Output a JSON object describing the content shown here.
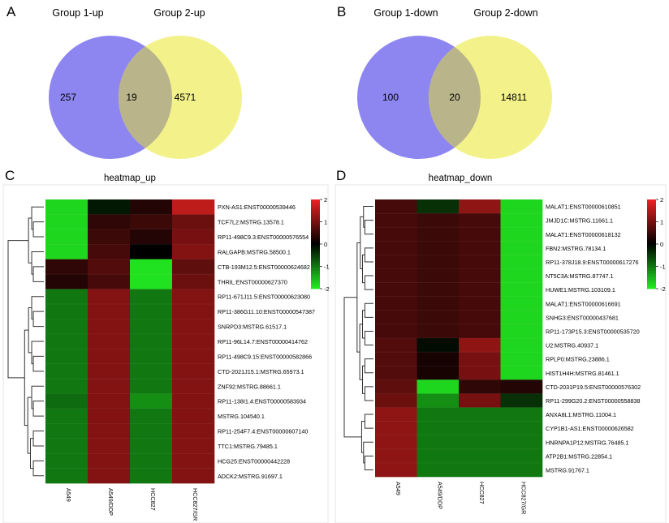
{
  "venn_up": {
    "panel_label": "A",
    "left_label": "Group 1-up",
    "right_label": "Group 2-up",
    "left_only": "257",
    "overlap": "19",
    "right_only": "4571",
    "left_color": "#8e86f0",
    "right_color": "#f3f28a",
    "overlap_color": "#b9b48a"
  },
  "venn_down": {
    "panel_label": "B",
    "left_label": "Group 1-down",
    "right_label": "Group 2-down",
    "left_only": "100",
    "overlap": "20",
    "right_only": "14811",
    "left_color": "#8e86f0",
    "right_color": "#f3f28a",
    "overlap_color": "#b9b48a"
  },
  "chart_data": [
    {
      "type": "heatmap",
      "panel_label": "C",
      "title": "heatmap_up",
      "columns": [
        "A549",
        "A549/DDP",
        "HCC827",
        "HCC827/GR"
      ],
      "rows": [
        "PXN-AS1:ENST00000539446",
        "TCF7L2:MSTRG.13578.1",
        "RP11-498C9.3:ENST00000576554",
        "RALGAPB:MSTRG.58500.1",
        "CTB-193M12.5:ENST00000624682",
        "THRIL:ENST00000627370",
        "RP11-671J11.5:ENST00000623080",
        "RP11-386G11.10:ENST00000547387",
        "SNRPD3:MSTRG.61517.1",
        "RP11-96L14.7:ENST00000414762",
        "RP11-498C9.15:ENST00000582866",
        "CTD-2021J15.1:MSTRG.65973.1",
        "ZNF92:MSTRG.88661.1",
        "RP11-138I1.4:ENST00000583934",
        "MSTRG.104540.1",
        "RP11-254F7.4:ENST00000607140",
        "TTC1:MSTRG.79485.1",
        "HCG25:ENST00000442228",
        "ADCK2:MSTRG.91697.1"
      ],
      "values": [
        [
          -1.8,
          -0.2,
          0.3,
          1.6
        ],
        [
          -1.8,
          0.4,
          0.5,
          0.9
        ],
        [
          -1.8,
          0.5,
          0.3,
          1.0
        ],
        [
          -1.8,
          0.6,
          0.0,
          1.1
        ],
        [
          0.4,
          0.7,
          -1.9,
          0.8
        ],
        [
          0.3,
          0.6,
          -1.9,
          0.9
        ],
        [
          -1.0,
          1.1,
          -1.0,
          1.1
        ],
        [
          -1.0,
          1.1,
          -1.0,
          1.1
        ],
        [
          -1.0,
          1.1,
          -1.0,
          1.1
        ],
        [
          -1.0,
          1.1,
          -1.0,
          1.1
        ],
        [
          -1.0,
          1.1,
          -1.0,
          1.1
        ],
        [
          -1.0,
          1.1,
          -1.0,
          1.1
        ],
        [
          -1.0,
          1.1,
          -1.0,
          1.1
        ],
        [
          -0.9,
          1.1,
          -1.2,
          1.1
        ],
        [
          -1.0,
          1.1,
          -1.0,
          1.1
        ],
        [
          -1.0,
          1.1,
          -1.0,
          1.1
        ],
        [
          -1.0,
          1.1,
          -1.0,
          1.1
        ],
        [
          -1.0,
          1.1,
          -1.0,
          1.1
        ],
        [
          -1.0,
          1.1,
          -1.0,
          1.1
        ]
      ],
      "scale": {
        "min": -2,
        "max": 2,
        "ticks": [
          "2",
          "1",
          "0",
          "-1",
          "-2"
        ]
      },
      "colors": {
        "low": "#22ee22",
        "mid": "#000000",
        "high": "#ee2222"
      }
    },
    {
      "type": "heatmap",
      "panel_label": "D",
      "title": "heatmap_down",
      "columns": [
        "A549",
        "A549/DDP",
        "HCC827",
        "HCC827/GR"
      ],
      "rows": [
        "MALAT1:ENST00000610851",
        "JMJD1C:MSTRG.11661.1",
        "MALAT1:ENST00000618132",
        "FBN2:MSTRG.78134.1",
        "RP11-378J18.9:ENST00000617276",
        "NT5C3A:MSTRG.87747.1",
        "HUWE1:MSTRG.103109.1",
        "MALAT1:ENST00000616691",
        "SNHG3:ENST00000437681",
        "RP11-173P15.3:ENST00000535720",
        "U2:MSTRG.40937.1",
        "RPLP0:MSTRG.23886.1",
        "HIST1H4H:MSTRG.81461.1",
        "CTD-2031P19.5:ENST00000576302",
        "RP11-299G20.2:ENST00000558838",
        "ANXA8L1:MSTRG.11004.1",
        "CYP1B1-AS1:ENST00000626582",
        "HNRNPA1P12:MSTRG.76485.1",
        "ATP2B1:MSTRG.22854.1",
        "MSTRG.91767.1"
      ],
      "values": [
        [
          0.6,
          -0.4,
          1.2,
          -1.8
        ],
        [
          0.6,
          0.5,
          0.6,
          -1.8
        ],
        [
          0.6,
          0.5,
          0.6,
          -1.8
        ],
        [
          0.6,
          0.5,
          0.6,
          -1.8
        ],
        [
          0.6,
          0.5,
          0.6,
          -1.8
        ],
        [
          0.6,
          0.5,
          0.6,
          -1.8
        ],
        [
          0.6,
          0.5,
          0.6,
          -1.8
        ],
        [
          0.6,
          0.5,
          0.6,
          -1.8
        ],
        [
          0.6,
          0.5,
          0.6,
          -1.8
        ],
        [
          0.6,
          0.5,
          0.6,
          -1.8
        ],
        [
          0.7,
          -0.1,
          1.2,
          -1.8
        ],
        [
          0.7,
          0.2,
          1.0,
          -1.8
        ],
        [
          0.7,
          0.2,
          1.0,
          -1.8
        ],
        [
          0.8,
          -1.8,
          0.4,
          0.3
        ],
        [
          0.9,
          -1.2,
          1.0,
          -0.4
        ],
        [
          1.2,
          -1.0,
          -1.0,
          -1.0
        ],
        [
          1.2,
          -1.0,
          -1.0,
          -1.0
        ],
        [
          1.2,
          -1.0,
          -1.0,
          -1.0
        ],
        [
          1.2,
          -1.0,
          -1.0,
          -1.0
        ],
        [
          1.2,
          -1.0,
          -1.0,
          -1.0
        ]
      ],
      "scale": {
        "min": -2,
        "max": 2,
        "ticks": [
          "2",
          "1",
          "0",
          "-1",
          "-2"
        ]
      },
      "colors": {
        "low": "#22ee22",
        "mid": "#000000",
        "high": "#ee2222"
      }
    }
  ]
}
